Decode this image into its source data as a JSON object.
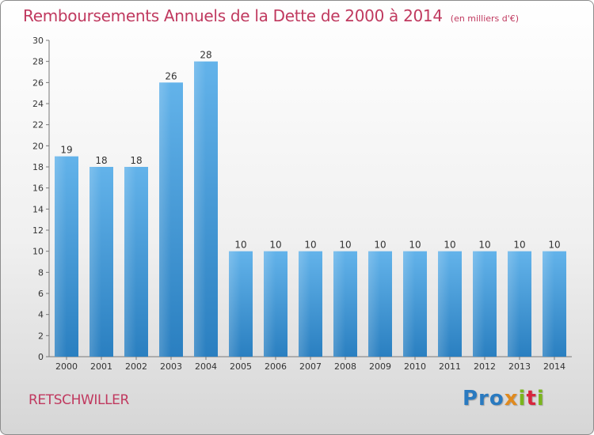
{
  "title": "Remboursements Annuels de la Dette de 2000 à 2014",
  "subtitle": "(en milliers d'€)",
  "commune": "RETSCHWILLER",
  "logo": {
    "p1": "Pro",
    "p2": "x",
    "p3": "i",
    "p4": "t",
    "p5": "i"
  },
  "colors": {
    "bar_light": "#63b3ea",
    "bar_dark": "#2a7fc0",
    "title": "#c0395f"
  },
  "chart_data": {
    "type": "bar",
    "categories": [
      "2000",
      "2001",
      "2002",
      "2003",
      "2004",
      "2005",
      "2006",
      "2007",
      "2008",
      "2009",
      "2010",
      "2011",
      "2012",
      "2013",
      "2014"
    ],
    "values": [
      19,
      18,
      18,
      26,
      28,
      10,
      10,
      10,
      10,
      10,
      10,
      10,
      10,
      10,
      10
    ],
    "title": "Remboursements Annuels de la Dette de 2000 à 2014",
    "xlabel": "",
    "ylabel": "",
    "ylim": [
      0,
      30
    ],
    "yticks": [
      0,
      2,
      4,
      6,
      8,
      10,
      12,
      14,
      16,
      18,
      20,
      22,
      24,
      26,
      28,
      30
    ],
    "grid": false,
    "data_labels": true
  }
}
